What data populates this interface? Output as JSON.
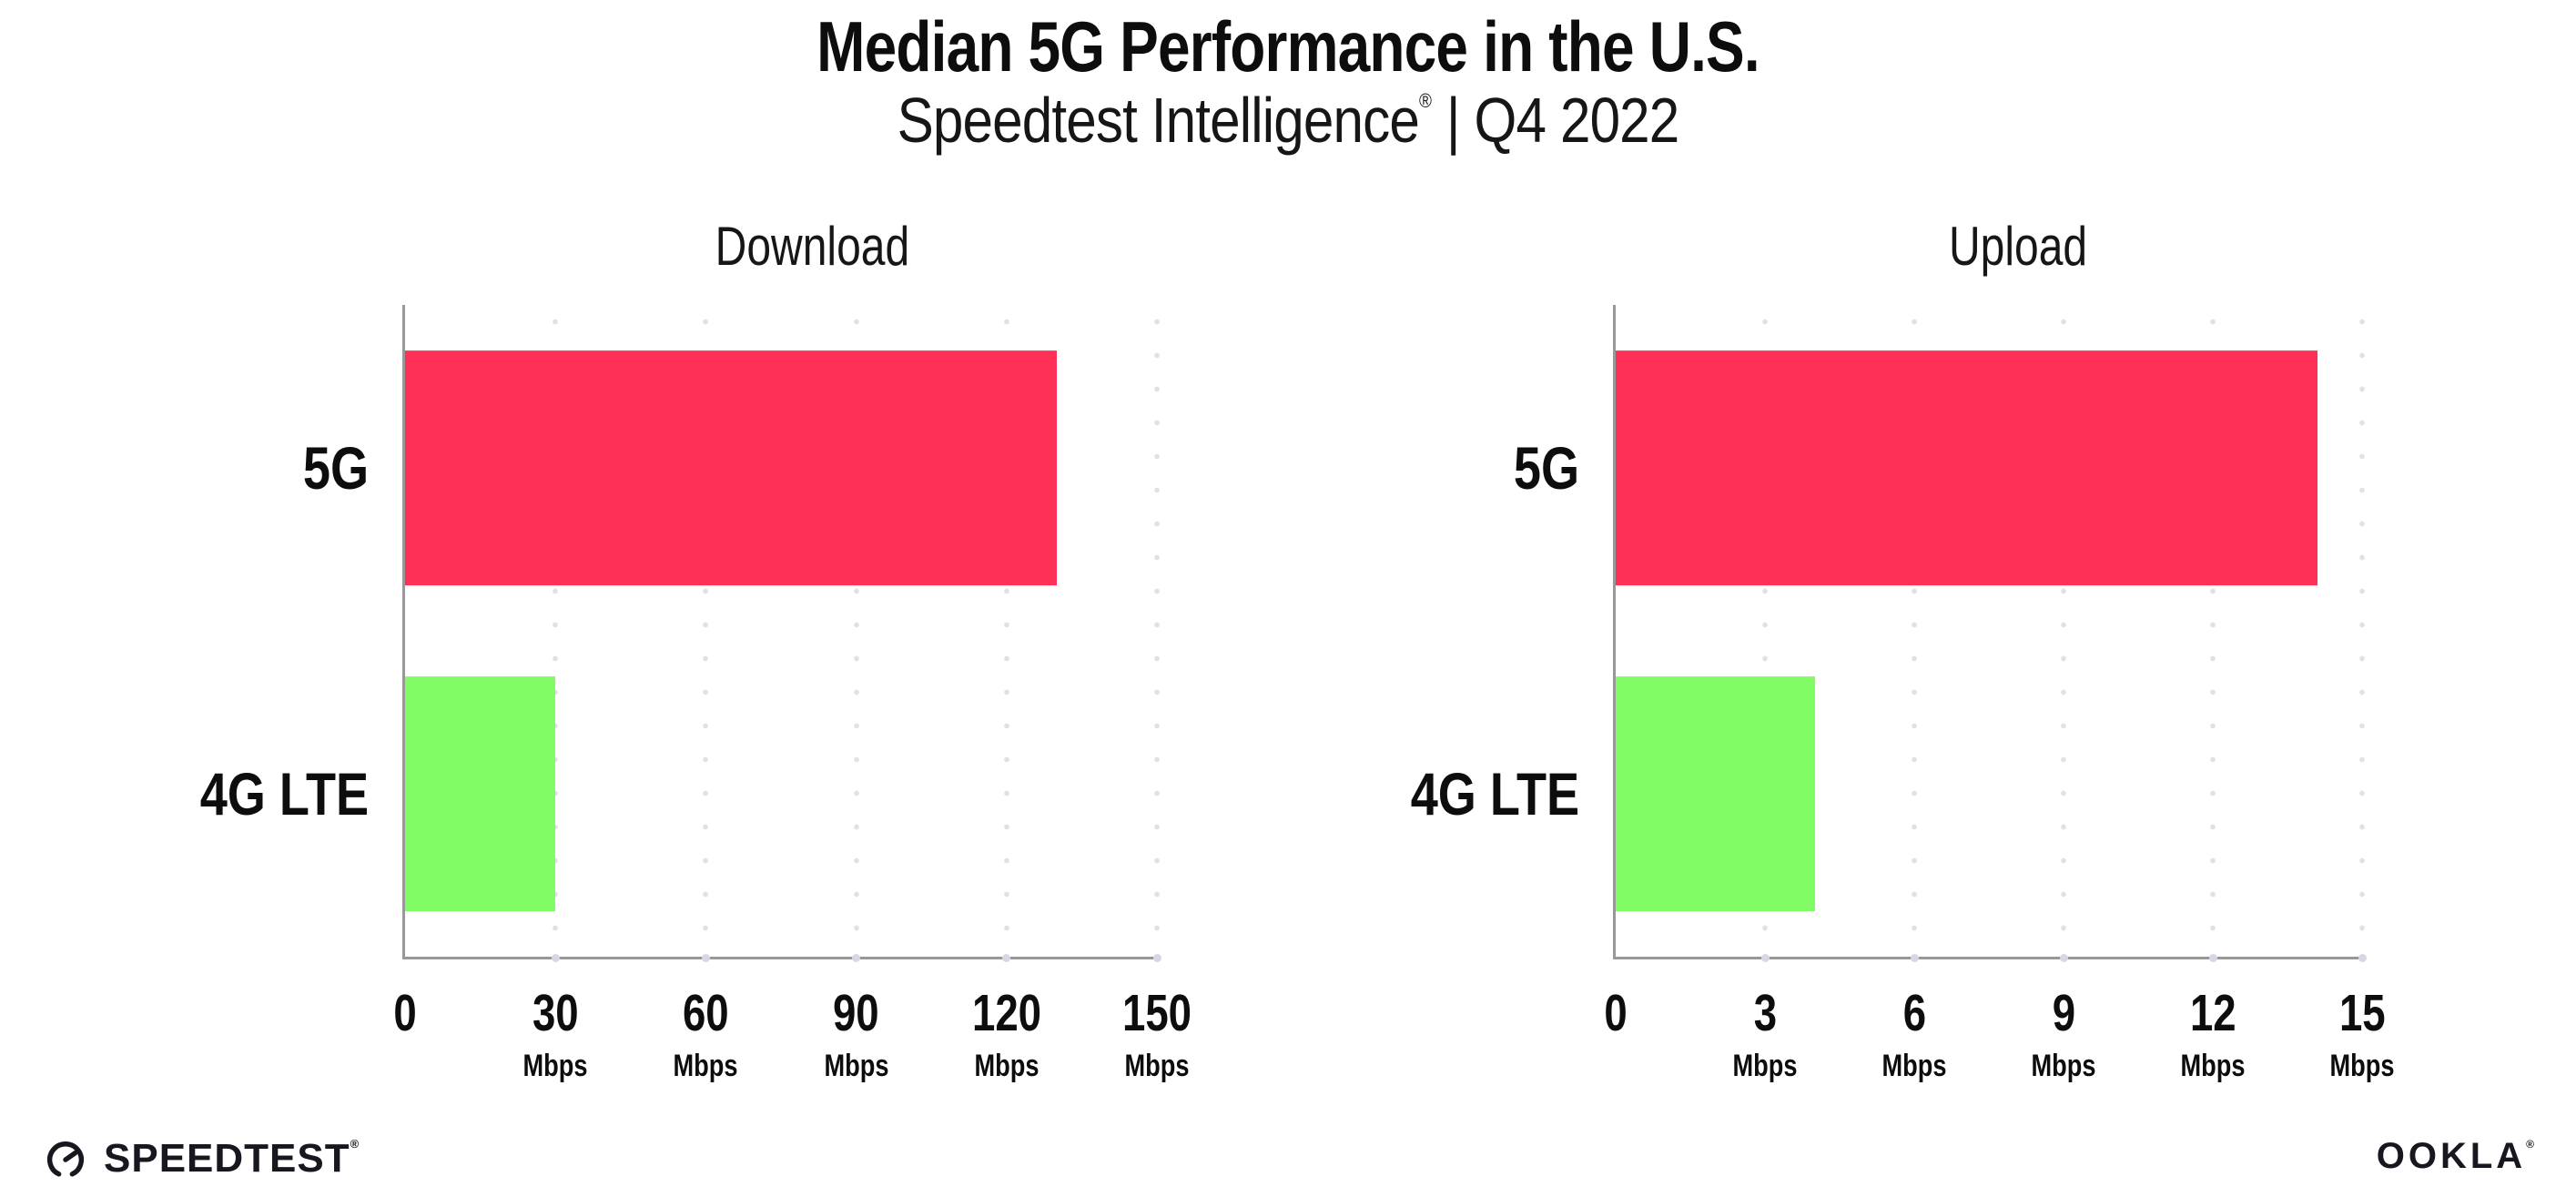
{
  "header": {
    "title": "Median 5G Performance in the U.S.",
    "subtitle_brand": "Speedtest Intelligence",
    "subtitle_reg": "®",
    "subtitle_rest": " | Q4 2022"
  },
  "footer": {
    "speedtest_label": "SPEEDTEST",
    "speedtest_reg": "®",
    "ookla_label": "OOKLA",
    "ookla_reg": "®"
  },
  "colors": {
    "bar_5g": "#ff3057",
    "bar_4g_lte": "#82fc64",
    "axis": "#989898",
    "gridline_dots": "#e0e0eb"
  },
  "chart_data": [
    {
      "type": "bar",
      "orientation": "horizontal",
      "title": "Download",
      "categories": [
        "5G",
        "4G LTE"
      ],
      "values": [
        130,
        30
      ],
      "unit": "Mbps",
      "xlabel": "",
      "ylabel": "",
      "xlim": [
        0,
        150
      ],
      "xticks": [
        0,
        30,
        60,
        90,
        120,
        150
      ],
      "tick_unit_suffix": "Mbps",
      "zero_tick_has_unit": false,
      "series_colors": [
        "#ff3057",
        "#82fc64"
      ],
      "grid": "dotted vertical gridlines at every labeled tick",
      "legend_position": "none"
    },
    {
      "type": "bar",
      "orientation": "horizontal",
      "title": "Upload",
      "categories": [
        "5G",
        "4G LTE"
      ],
      "values": [
        14.1,
        4.0
      ],
      "unit": "Mbps",
      "xlabel": "",
      "ylabel": "",
      "xlim": [
        0,
        15
      ],
      "xticks": [
        0,
        3,
        6,
        9,
        12,
        15
      ],
      "tick_unit_suffix": "Mbps",
      "zero_tick_has_unit": false,
      "series_colors": [
        "#ff3057",
        "#82fc64"
      ],
      "grid": "dotted vertical gridlines at every labeled tick",
      "legend_position": "none"
    }
  ]
}
